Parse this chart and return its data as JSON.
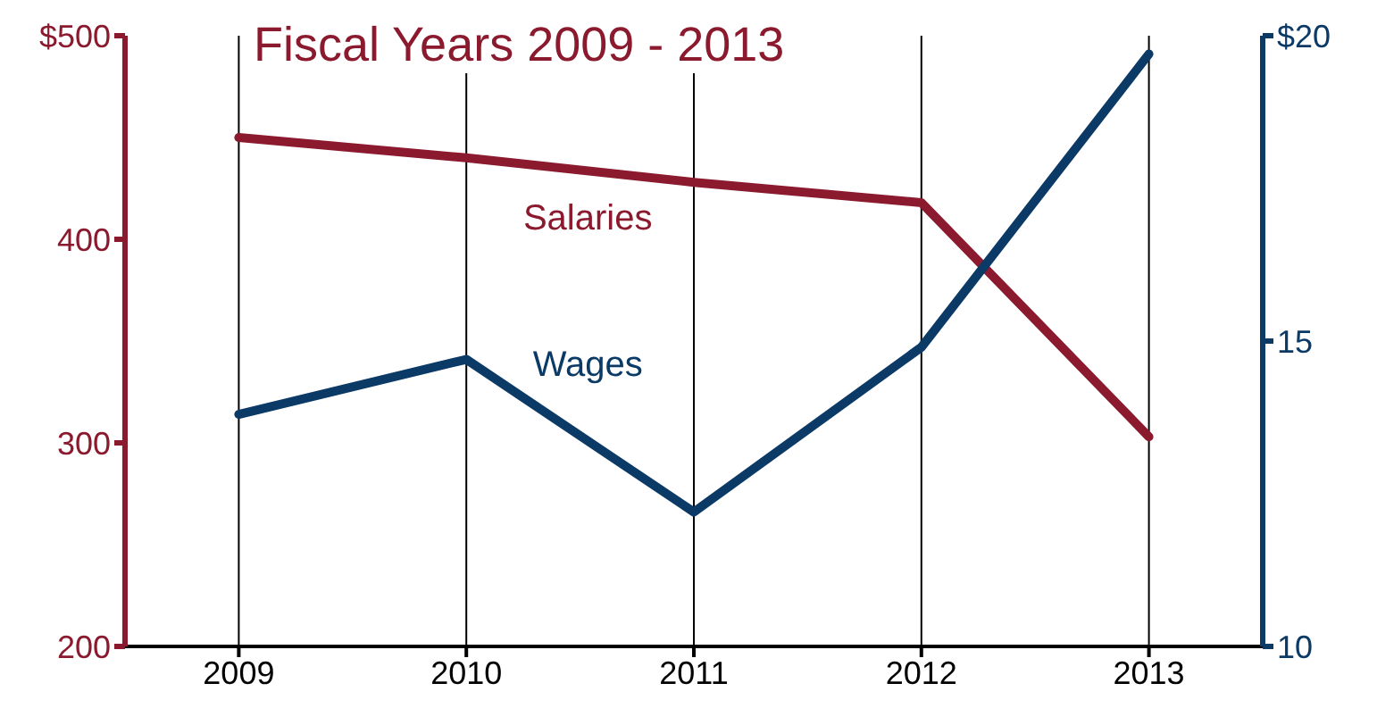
{
  "chart_data": {
    "type": "line",
    "title": "Fiscal Years 2009 - 2013",
    "categories": [
      "2009",
      "2010",
      "2011",
      "2012",
      "2013"
    ],
    "series": [
      {
        "name": "Salaries",
        "color": "#8b1a2e",
        "values": [
          450,
          440,
          428,
          418,
          303
        ]
      },
      {
        "name": "Wages",
        "color": "#0b3a66",
        "axis": "y2",
        "values": [
          13.8,
          14.7,
          12.2,
          14.9,
          19.7
        ]
      }
    ],
    "ylim": [
      200,
      500
    ],
    "yticks": [
      200,
      300,
      400,
      {
        "value": 500,
        "label": "$500"
      }
    ],
    "y2lim": [
      10,
      20
    ],
    "y2ticks": [
      10,
      15,
      {
        "value": 20,
        "label": "$20"
      }
    ],
    "grid": "x",
    "legend": false,
    "marker": "none",
    "line_style": "solid"
  }
}
